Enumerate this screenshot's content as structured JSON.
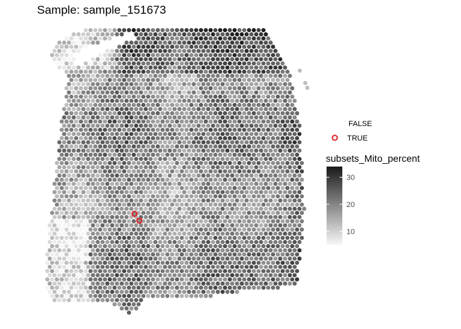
{
  "chart_data": {
    "type": "scatter",
    "title": "Sample: sample_151673",
    "description_shape": "hexagonal grid of Visium spots forming tissue outline",
    "color_legend": {
      "title": "subsets_Mito_percent",
      "colors": [
        "#f7f7f7",
        "#1a1a1a"
      ],
      "range": [
        5,
        34
      ],
      "ticks": [
        10,
        20,
        30
      ]
    },
    "outline_legend": {
      "entries": [
        {
          "label": "FALSE",
          "stroke": "none"
        },
        {
          "label": "TRUE",
          "stroke": "#e31a1c"
        }
      ]
    },
    "highlighted_spots": 2,
    "grid_on": false
  }
}
